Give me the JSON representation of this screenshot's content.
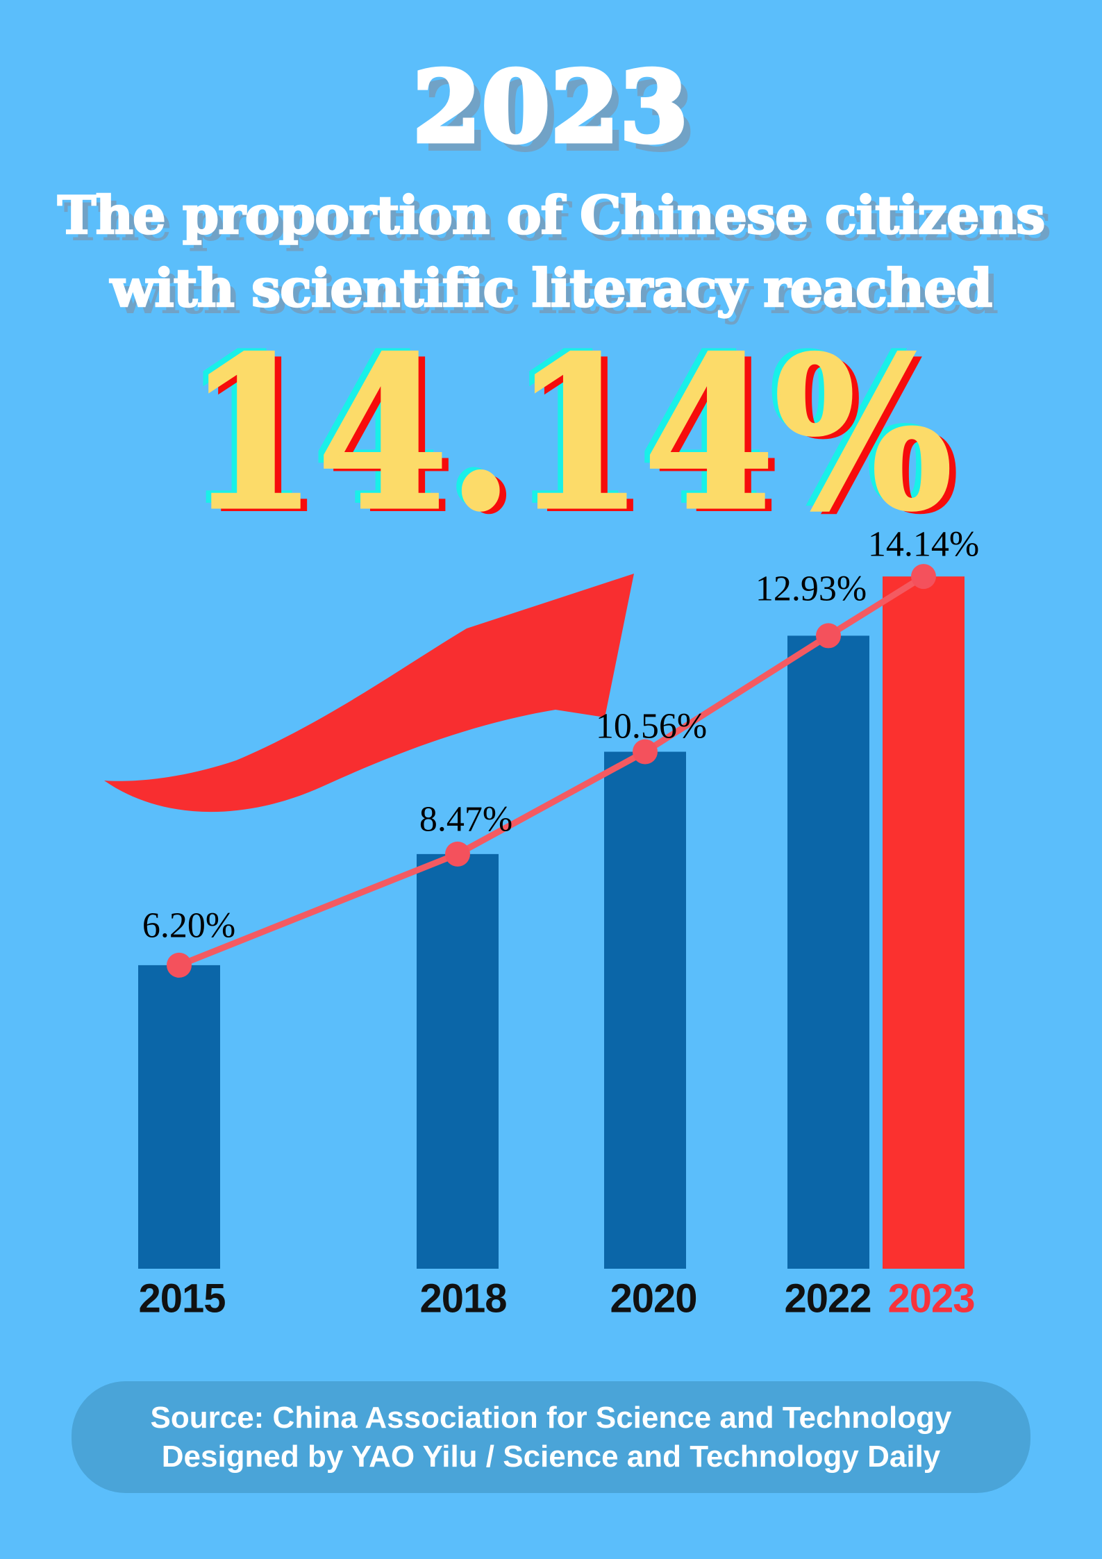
{
  "header": {
    "year_title": "2023",
    "subtitle_line1": "The proportion of Chinese citizens",
    "subtitle_line2": "with scientific literacy reached",
    "highlight_value": "14.14%"
  },
  "chart_data": {
    "type": "bar",
    "title": "Proportion of Chinese citizens with scientific literacy",
    "categories": [
      "2015",
      "2018",
      "2020",
      "2022",
      "2023"
    ],
    "values": [
      6.2,
      8.47,
      10.56,
      12.93,
      14.14
    ],
    "value_labels": [
      "6.20%",
      "8.47%",
      "10.56%",
      "12.93%",
      "14.14%"
    ],
    "series": [
      {
        "name": "literacy-rate-bars",
        "type": "bar",
        "values": [
          6.2,
          8.47,
          10.56,
          12.93,
          14.14
        ]
      },
      {
        "name": "literacy-rate-trend",
        "type": "line",
        "values": [
          6.2,
          8.47,
          10.56,
          12.93,
          14.14
        ]
      }
    ],
    "xlabel": "",
    "ylabel": "",
    "ylim": [
      0,
      14.14
    ],
    "grid": false,
    "legend_position": "none",
    "highlight_category": "2023",
    "annotations": [
      "upward-trend-arrow"
    ]
  },
  "colors": {
    "background": "#5bbefb",
    "bar_blue": "#0b66a8",
    "bar_red": "#fb312f",
    "trend_line": "#f45a61",
    "trend_dot": "#f4515c",
    "arrow_red": "#f82e30",
    "big_number_fill": "#fcdb69",
    "big_number_shadow_red": "#f60c0c",
    "big_number_shadow_cyan": "#19f0e8",
    "heading_shadow": "#71a2c6",
    "footer_bg": "#4aa4d8",
    "year_label": "#111111",
    "year_label_highlight": "#f7333c",
    "value_label": "#000000"
  },
  "footer": {
    "line1": "Source: China Association for Science and Technology",
    "line2": "Designed by YAO Yilu / Science and Technology Daily"
  }
}
